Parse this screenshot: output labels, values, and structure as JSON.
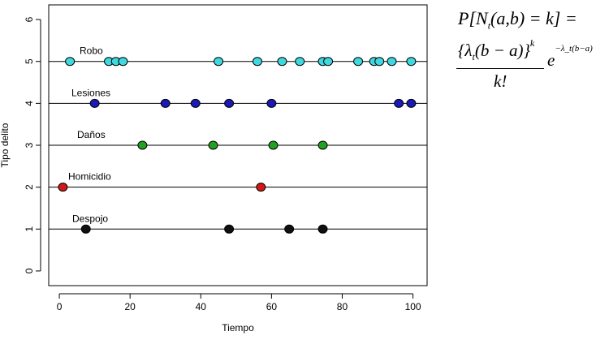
{
  "chart_data": {
    "type": "scatter",
    "xlabel": "Tiempo",
    "ylabel": "Tipo delito",
    "xlim": [
      -3,
      104
    ],
    "ylim": [
      -0.35,
      6.35
    ],
    "xticks": [
      "0",
      "20",
      "40",
      "60",
      "80",
      "100"
    ],
    "yticks": [
      "0",
      "1",
      "2",
      "3",
      "4",
      "5",
      "6"
    ],
    "grid": false,
    "series": [
      {
        "name": "Robo",
        "y": 5,
        "color": "#40d8e0",
        "x": [
          3,
          14,
          16,
          18,
          45,
          56,
          63,
          68,
          74.5,
          76,
          84.5,
          89,
          90.5,
          94,
          99.5
        ]
      },
      {
        "name": "Lesiones",
        "y": 4,
        "color": "#1a1ab8",
        "x": [
          10,
          30,
          38.5,
          48,
          60,
          96,
          99.5
        ]
      },
      {
        "name": "Daños",
        "y": 3,
        "color": "#22a022",
        "x": [
          23.5,
          43.5,
          60.5,
          74.5
        ]
      },
      {
        "name": "Homicidio",
        "y": 2,
        "color": "#d01818",
        "x": [
          1,
          57
        ]
      },
      {
        "name": "Despojo",
        "y": 1,
        "color": "#101010",
        "x": [
          7.5,
          48,
          65,
          74.5
        ]
      }
    ]
  },
  "formula": {
    "line1": "P[N",
    "line1_sub": "t",
    "line1_rest": "(a,b) = k] =",
    "numer": "{λ",
    "numer_sub": "t",
    "numer_rest": "(b − a)}",
    "numer_sup": "k",
    "denom": "k!",
    "exp_base": "e",
    "exp_sup": "−λ_t(b−a)"
  }
}
